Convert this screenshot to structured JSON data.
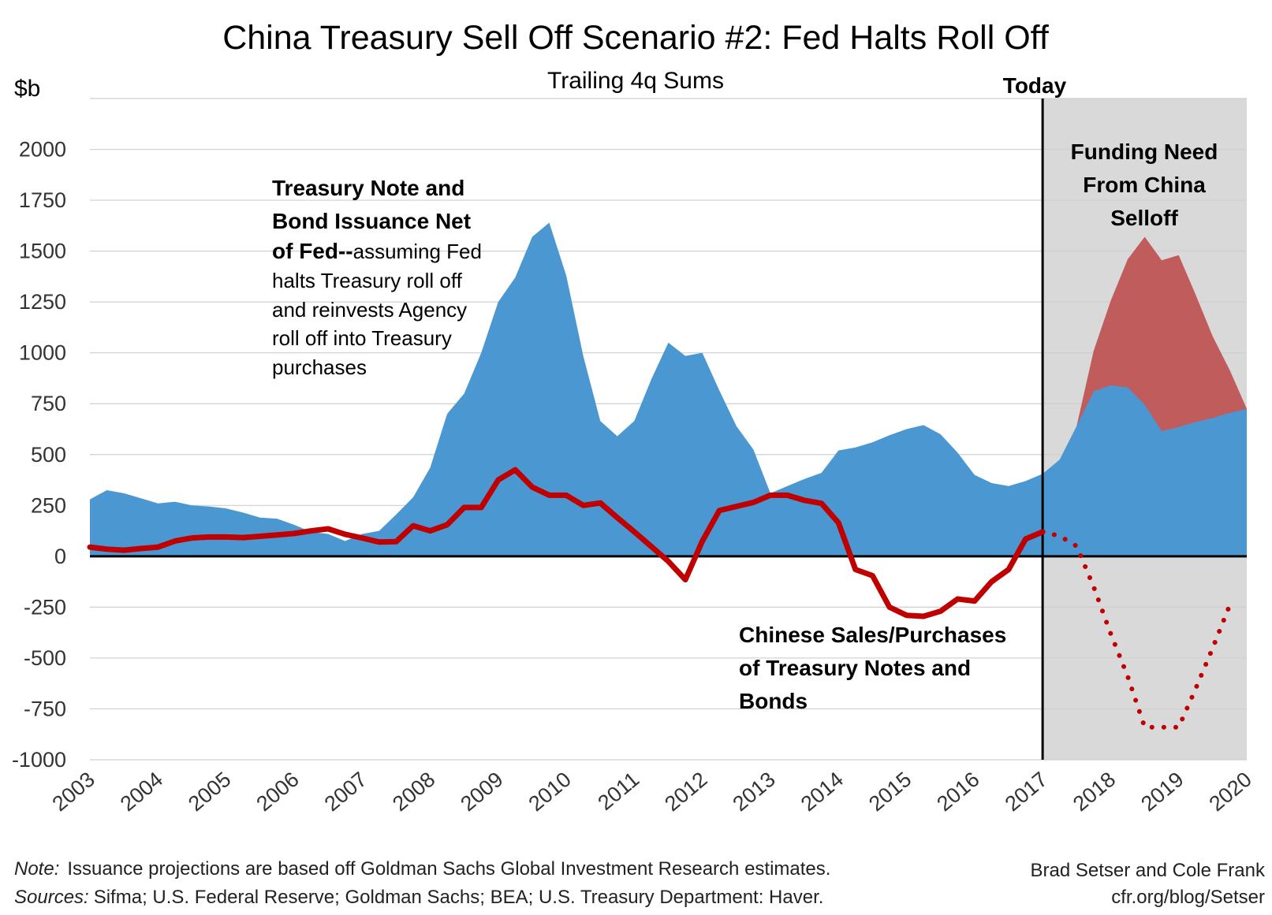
{
  "chart_data": {
    "type": "area",
    "title": "China Treasury Sell Off Scenario #2: Fed Halts Roll Off",
    "subtitle": "Trailing 4q Sums",
    "ylabel": "$b",
    "ylim": [
      -1000,
      2250
    ],
    "yticks": [
      2000,
      1750,
      1500,
      1250,
      1000,
      750,
      500,
      250,
      0,
      -250,
      -500,
      -750,
      -1000
    ],
    "xlim": [
      2003,
      2020
    ],
    "xticks": [
      "2003",
      "2004",
      "2005",
      "2006",
      "2007",
      "2008",
      "2009",
      "2010",
      "2011",
      "2012",
      "2013",
      "2014",
      "2015",
      "2016",
      "2017",
      "2018",
      "2019",
      "2020"
    ],
    "today_label": "Today",
    "today_x": 2017,
    "shaded_region": [
      2017,
      2020
    ],
    "grid": true,
    "series": [
      {
        "name": "Treasury Note and Bond Issuance Net of Fed",
        "kind": "area",
        "color": "#4a97d1",
        "x": [
          2003.0,
          2003.25,
          2003.5,
          2003.75,
          2004.0,
          2004.25,
          2004.5,
          2004.75,
          2005.0,
          2005.25,
          2005.5,
          2005.75,
          2006.0,
          2006.25,
          2006.5,
          2006.75,
          2007.0,
          2007.25,
          2007.5,
          2007.75,
          2008.0,
          2008.25,
          2008.5,
          2008.75,
          2009.0,
          2009.25,
          2009.5,
          2009.75,
          2010.0,
          2010.25,
          2010.5,
          2010.75,
          2011.0,
          2011.25,
          2011.5,
          2011.75,
          2012.0,
          2012.25,
          2012.5,
          2012.75,
          2013.0,
          2013.25,
          2013.5,
          2013.75,
          2014.0,
          2014.25,
          2014.5,
          2014.75,
          2015.0,
          2015.25,
          2015.5,
          2015.75,
          2016.0,
          2016.25,
          2016.5,
          2016.75,
          2017.0,
          2017.25,
          2017.5,
          2017.75,
          2018.0,
          2018.25,
          2018.5,
          2018.75,
          2019.0,
          2019.25,
          2019.5,
          2019.75,
          2020.0
        ],
        "values": [
          280,
          325,
          310,
          285,
          260,
          268,
          250,
          245,
          235,
          215,
          190,
          185,
          155,
          120,
          110,
          75,
          110,
          125,
          205,
          290,
          435,
          700,
          800,
          1000,
          1250,
          1370,
          1570,
          1640,
          1380,
          985,
          665,
          590,
          665,
          870,
          1050,
          985,
          1000,
          815,
          640,
          525,
          310,
          345,
          380,
          410,
          520,
          535,
          560,
          595,
          625,
          645,
          600,
          510,
          400,
          360,
          345,
          370,
          405,
          475,
          640,
          810,
          840,
          830,
          745,
          615,
          635,
          660,
          680,
          705,
          725
        ]
      },
      {
        "name": "Funding Need From China Selloff",
        "kind": "area",
        "color": "#c05c5c",
        "x": [
          2017.5,
          2017.75,
          2018.0,
          2018.25,
          2018.5,
          2018.75,
          2019.0,
          2019.25,
          2019.5,
          2019.75,
          2020.0
        ],
        "values": [
          640,
          1010,
          1255,
          1460,
          1570,
          1455,
          1480,
          1285,
          1080,
          915,
          725
        ]
      },
      {
        "name": "Chinese Sales/Purchases of Treasury Notes and Bonds",
        "kind": "line",
        "color": "#c00000",
        "x": [
          2003.0,
          2003.25,
          2003.5,
          2003.75,
          2004.0,
          2004.25,
          2004.5,
          2004.75,
          2005.0,
          2005.25,
          2005.5,
          2005.75,
          2006.0,
          2006.25,
          2006.5,
          2006.75,
          2007.0,
          2007.25,
          2007.5,
          2007.75,
          2008.0,
          2008.25,
          2008.5,
          2008.75,
          2009.0,
          2009.25,
          2009.5,
          2009.75,
          2010.0,
          2010.25,
          2010.5,
          2010.75,
          2011.0,
          2011.25,
          2011.5,
          2011.75,
          2012.0,
          2012.25,
          2012.5,
          2012.75,
          2013.0,
          2013.25,
          2013.5,
          2013.75,
          2014.0,
          2014.25,
          2014.5,
          2014.75,
          2015.0,
          2015.25,
          2015.5,
          2015.75,
          2016.0,
          2016.25,
          2016.5,
          2016.75,
          2017.0
        ],
        "values": [
          45,
          35,
          30,
          38,
          45,
          75,
          90,
          95,
          95,
          92,
          98,
          105,
          112,
          125,
          135,
          108,
          90,
          70,
          72,
          150,
          125,
          155,
          240,
          240,
          375,
          425,
          340,
          300,
          300,
          250,
          262,
          190,
          120,
          48,
          -25,
          -115,
          75,
          225,
          245,
          265,
          300,
          300,
          275,
          260,
          165,
          -65,
          -95,
          -250,
          -290,
          -295,
          -270,
          -210,
          -220,
          -125,
          -65,
          85,
          120
        ]
      },
      {
        "name": "Chinese Sales/Purchases projection",
        "kind": "dotted-line",
        "color": "#c00000",
        "x": [
          2017.0,
          2017.25,
          2017.5,
          2017.75,
          2018.0,
          2018.25,
          2018.5,
          2018.75,
          2019.0,
          2019.25,
          2019.5,
          2019.75
        ],
        "values": [
          120,
          100,
          50,
          -150,
          -380,
          -590,
          -840,
          -840,
          -840,
          -650,
          -450,
          -240
        ]
      }
    ],
    "annotations": {
      "issuance_bold": [
        "Treasury Note and",
        "Bond Issuance Net",
        "of Fed--"
      ],
      "issuance_normal": [
        "assuming Fed",
        "halts Treasury roll off",
        "and reinvests Agency",
        "roll off into Treasury",
        "purchases"
      ],
      "chinese": [
        "Chinese Sales/Purchases",
        "of Treasury Notes and",
        "Bonds"
      ],
      "funding": [
        "Funding Need",
        "From China",
        "Selloff"
      ]
    }
  },
  "footer": {
    "note_label": "Note:",
    "note_text": "Issuance projections are based off Goldman Sachs Global Investment Research estimates.",
    "sources_label": "Sources:",
    "sources_text": "Sifma; U.S. Federal Reserve; Goldman Sachs; BEA; U.S. Treasury Department: Haver.",
    "author": "Brad Setser and Cole Frank",
    "url": "cfr.org/blog/Setser"
  }
}
